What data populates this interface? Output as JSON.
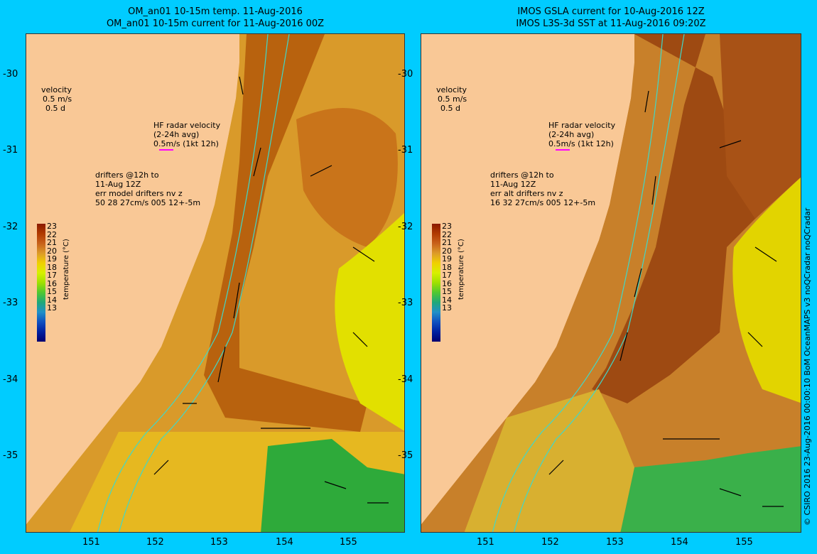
{
  "left": {
    "title1": "OM_an01 10-15m temp. 11-Aug-2016",
    "title2": "OM_an01 10-15m current for 11-Aug-2016 00Z",
    "drifters_line1": "drifters @12h to",
    "drifters_line2": "11-Aug 12Z",
    "drifters_line3": "err model drifters nv z",
    "drifters_line4": "50 28 27cm/s 005 12+-5m"
  },
  "right": {
    "title1": "IMOS GSLA current for 10-Aug-2016 12Z",
    "title2": "IMOS L3S-3d SST at 11-Aug-2016 09:20Z",
    "drifters_line1": "drifters @12h to",
    "drifters_line2": "11-Aug 12Z",
    "drifters_line3": "err alt drifters nv z",
    "drifters_line4": "16 32 27cm/s 005 12+-5m"
  },
  "velocity_legend": {
    "label": "velocity",
    "speed": "0.5 m/s",
    "duration": "0.5 d"
  },
  "hf_radar": {
    "line1": "HF radar velocity",
    "line2": "(2-24h avg)",
    "line3": "0.5m/s (1kt 12h)"
  },
  "colorbar": {
    "title": "temperature (°C)",
    "ticks": [
      "23",
      "22",
      "21",
      "20",
      "19",
      "18",
      "17",
      "16",
      "15",
      "14",
      "13"
    ],
    "colors": [
      "#8b1a00",
      "#b03a00",
      "#c8601a",
      "#dc9a28",
      "#f0d000",
      "#d8f000",
      "#a0e000",
      "#50c830",
      "#20a878",
      "#2090c8",
      "#1050c0",
      "#0020a0",
      "#000070"
    ]
  },
  "axes": {
    "lat_ticks": [
      "-30",
      "-31",
      "-32",
      "-33",
      "-34",
      "-35"
    ],
    "lon_ticks": [
      "151",
      "152",
      "153",
      "154",
      "155"
    ]
  },
  "credit": "© CSIRO 2016   23-Aug-2016 00:00:10 BoM OceanMAPS v3 noQCradar noQCradar",
  "colors": {
    "background": "#00ccff",
    "land": "#f9c896",
    "warm_water": "#d08020",
    "cool_water": "#38b838",
    "isobath": "#40d8c8",
    "hf_arrow": "#ff00ff"
  }
}
